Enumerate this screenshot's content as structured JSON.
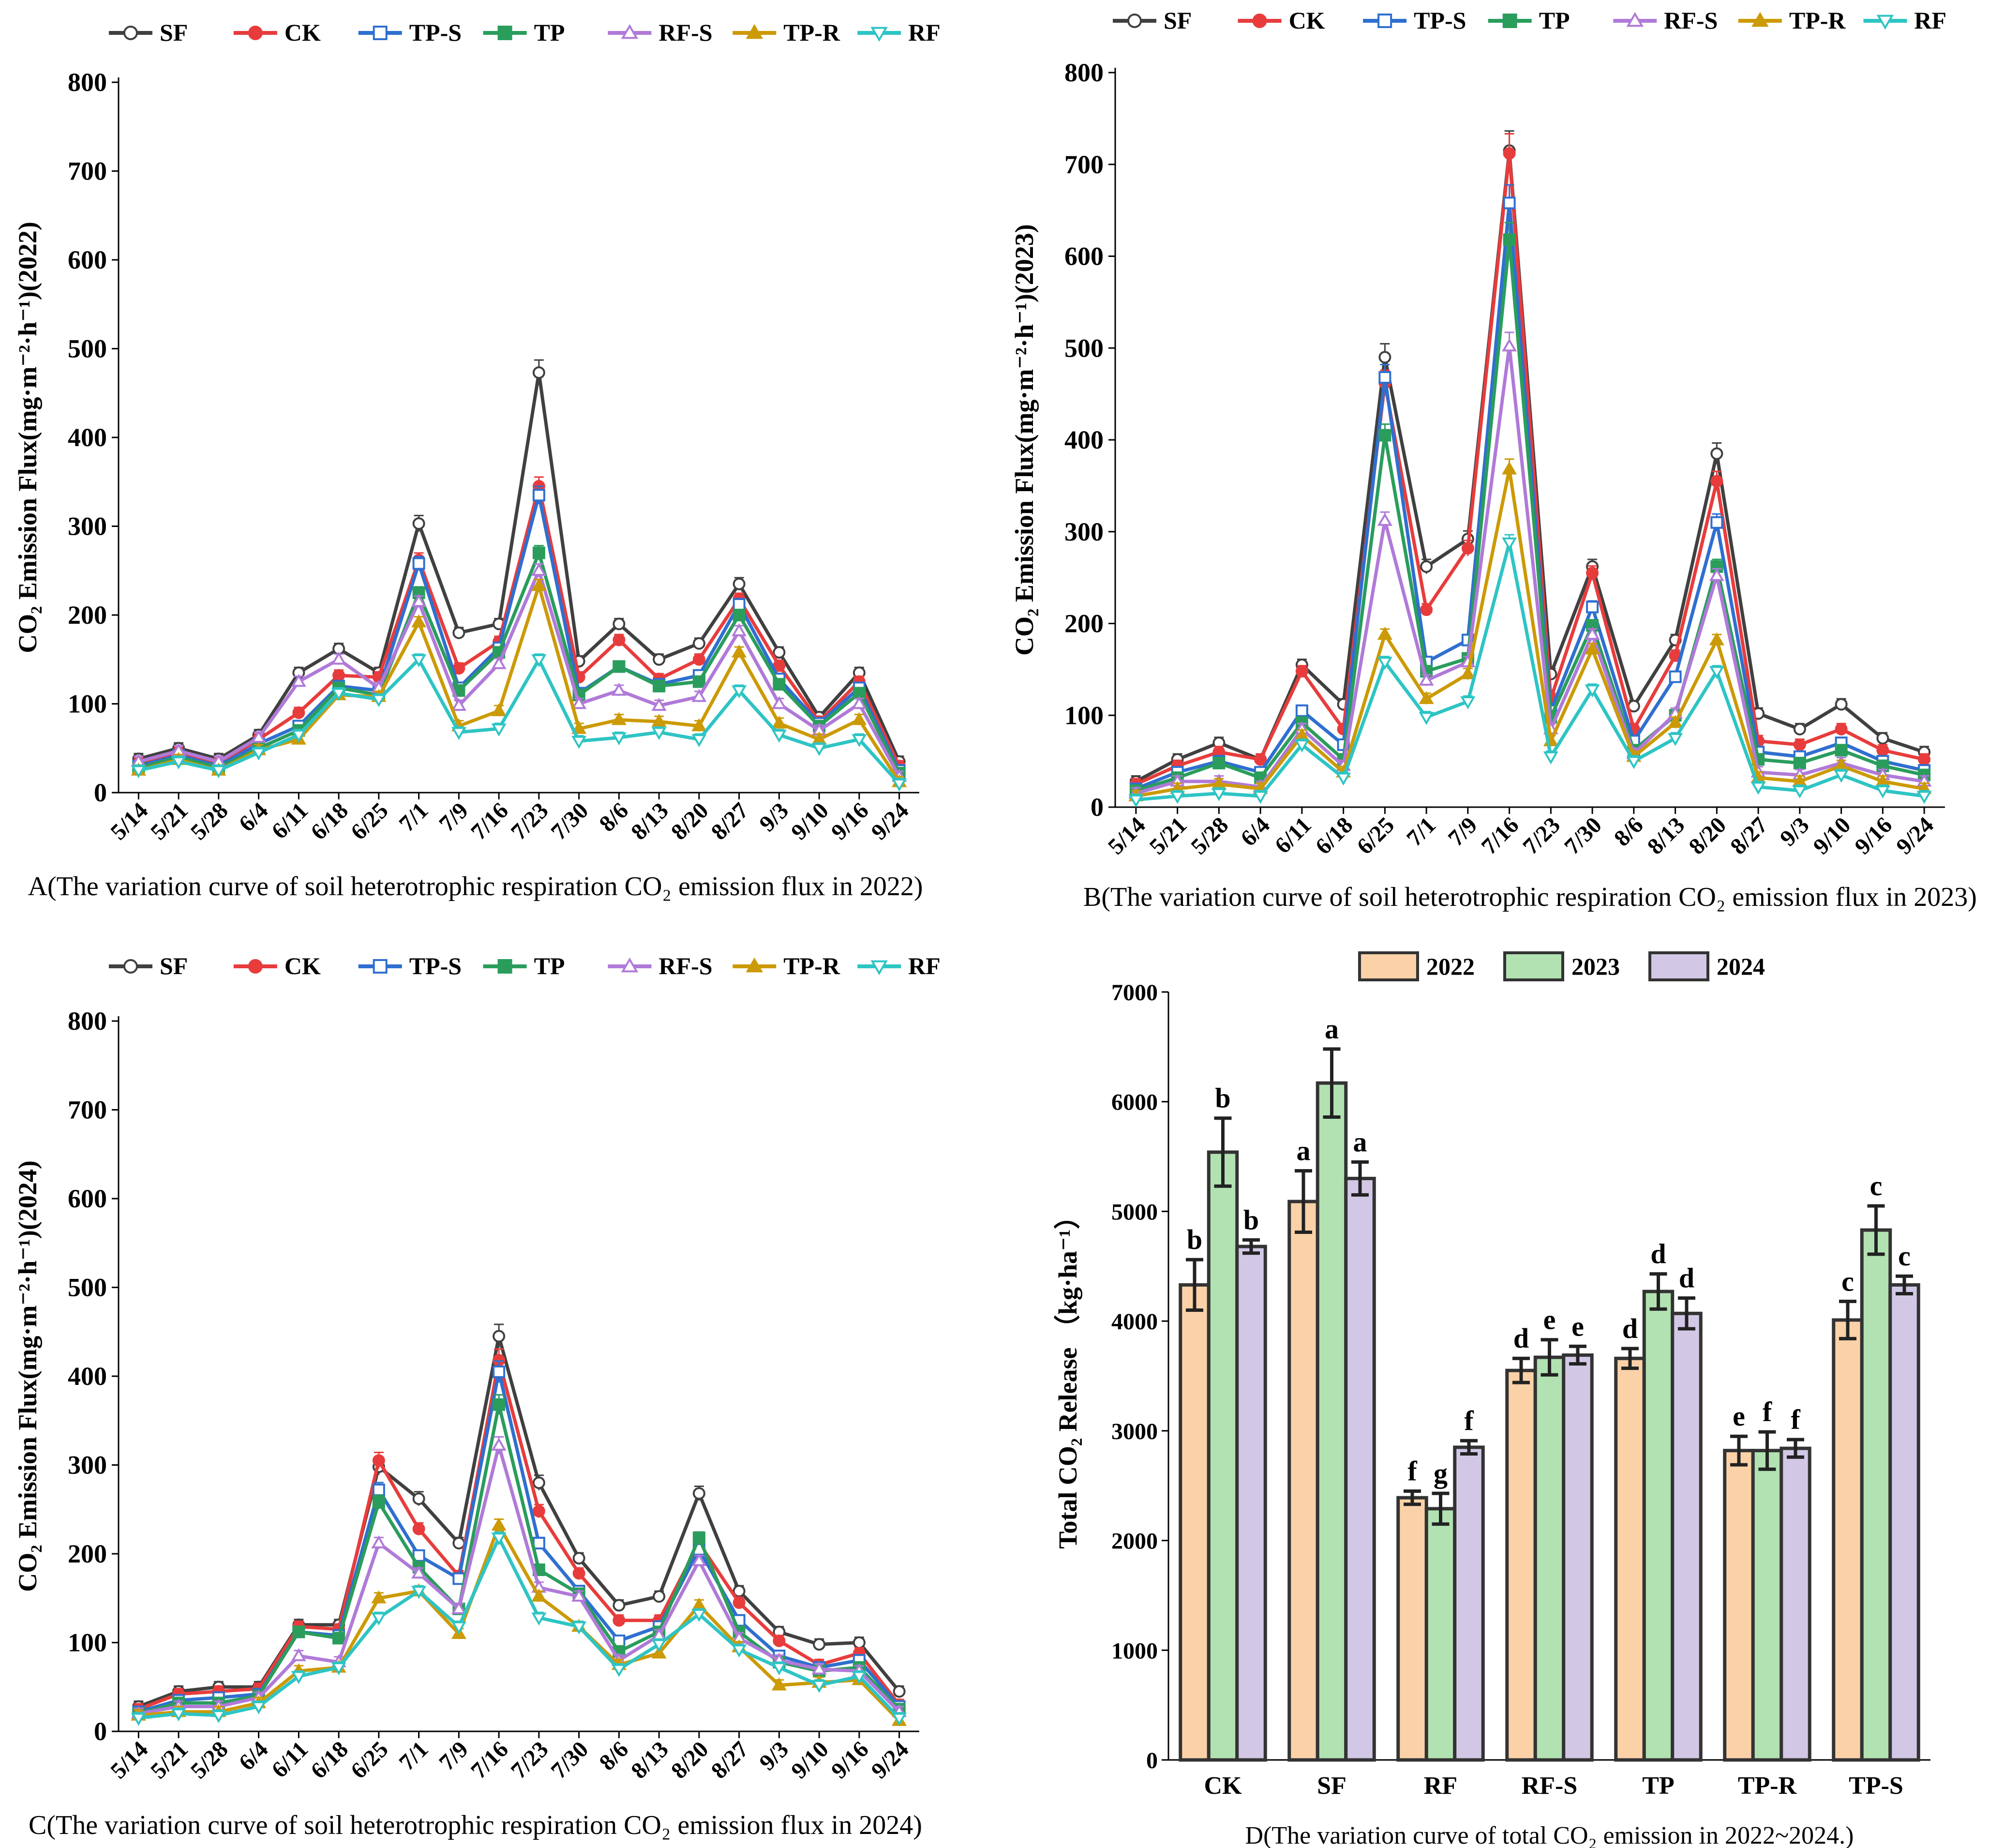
{
  "chart_data": [
    {
      "id": "A",
      "type": "line",
      "caption": "A(The variation curve of soil heterotrophic respiration CO₂ emission flux in 2022)",
      "ylabel": "CO₂ Emission Flux(mg·m⁻²·h⁻¹)(2022)",
      "ylim": [
        0,
        800
      ],
      "yticks": [
        0,
        100,
        200,
        300,
        400,
        500,
        600,
        700,
        800
      ],
      "categories": [
        "5/14",
        "5/21",
        "5/28",
        "6/4",
        "6/11",
        "6/18",
        "6/25",
        "7/1",
        "7/9",
        "7/16",
        "7/23",
        "7/30",
        "8/6",
        "8/13",
        "8/20",
        "8/27",
        "9/3",
        "9/10",
        "9/16",
        "9/24"
      ],
      "legend_position": "top",
      "series": [
        {
          "name": "SF",
          "color": "#404040",
          "marker": "circle-open",
          "values": [
            38,
            50,
            38,
            65,
            135,
            162,
            135,
            303,
            180,
            190,
            473,
            148,
            190,
            150,
            168,
            235,
            158,
            85,
            135,
            35
          ]
        },
        {
          "name": "CK",
          "color": "#e83c3c",
          "marker": "circle-filled",
          "values": [
            33,
            45,
            33,
            60,
            90,
            132,
            130,
            262,
            140,
            170,
            345,
            130,
            172,
            128,
            150,
            218,
            143,
            80,
            125,
            30
          ]
        },
        {
          "name": "TP-S",
          "color": "#2f6fd0",
          "marker": "square-open",
          "values": [
            30,
            42,
            30,
            55,
            75,
            120,
            115,
            258,
            118,
            163,
            335,
            112,
            142,
            122,
            132,
            212,
            128,
            78,
            118,
            25
          ]
        },
        {
          "name": "TP",
          "color": "#2a9d5c",
          "marker": "square-filled",
          "values": [
            28,
            40,
            28,
            50,
            70,
            118,
            110,
            225,
            115,
            158,
            270,
            110,
            142,
            120,
            125,
            200,
            122,
            75,
            112,
            22
          ]
        },
        {
          "name": "RF-S",
          "color": "#b07ad8",
          "marker": "triangle-open",
          "values": [
            35,
            47,
            35,
            62,
            125,
            150,
            118,
            215,
            98,
            145,
            250,
            100,
            115,
            98,
            108,
            182,
            100,
            70,
            100,
            18
          ]
        },
        {
          "name": "TP-R",
          "color": "#cc9a06",
          "marker": "triangle-filled",
          "values": [
            25,
            37,
            25,
            48,
            60,
            110,
            108,
            192,
            75,
            92,
            233,
            72,
            82,
            80,
            75,
            158,
            78,
            60,
            82,
            12
          ]
        },
        {
          "name": "RF",
          "color": "#2ec4c4",
          "marker": "triangle-down-open",
          "values": [
            25,
            35,
            25,
            45,
            65,
            112,
            105,
            150,
            68,
            72,
            150,
            58,
            62,
            68,
            60,
            115,
            65,
            50,
            60,
            10
          ]
        }
      ]
    },
    {
      "id": "B",
      "type": "line",
      "caption": "B(The variation curve of soil heterotrophic respiration CO₂ emission flux in 2023)",
      "ylabel": "CO₂ Emission Flux(mg·m⁻²·h⁻¹)(2023)",
      "ylim": [
        0,
        800
      ],
      "yticks": [
        0,
        100,
        200,
        300,
        400,
        500,
        600,
        700,
        800
      ],
      "categories": [
        "5/14",
        "5/21",
        "5/28",
        "6/4",
        "6/11",
        "6/18",
        "6/25",
        "7/1",
        "7/9",
        "7/16",
        "7/23",
        "7/30",
        "8/6",
        "8/13",
        "8/20",
        "8/27",
        "9/3",
        "9/10",
        "9/16",
        "9/24"
      ],
      "legend_position": "top",
      "series": [
        {
          "name": "SF",
          "color": "#404040",
          "marker": "circle-open",
          "values": [
            28,
            52,
            70,
            52,
            155,
            112,
            490,
            262,
            292,
            715,
            145,
            262,
            110,
            182,
            385,
            102,
            85,
            112,
            75,
            60
          ]
        },
        {
          "name": "CK",
          "color": "#e83c3c",
          "marker": "circle-filled",
          "values": [
            25,
            45,
            60,
            52,
            148,
            85,
            462,
            215,
            282,
            712,
            118,
            255,
            85,
            165,
            355,
            72,
            68,
            85,
            62,
            52
          ]
        },
        {
          "name": "TP-S",
          "color": "#2f6fd0",
          "marker": "square-open",
          "values": [
            20,
            38,
            50,
            38,
            105,
            68,
            468,
            158,
            182,
            658,
            105,
            218,
            72,
            142,
            310,
            60,
            55,
            70,
            50,
            40
          ]
        },
        {
          "name": "TP",
          "color": "#2a9d5c",
          "marker": "square-filled",
          "values": [
            18,
            32,
            48,
            32,
            92,
            52,
            405,
            148,
            162,
            618,
            98,
            198,
            62,
            100,
            262,
            52,
            48,
            62,
            45,
            35
          ]
        },
        {
          "name": "RF-S",
          "color": "#b07ad8",
          "marker": "triangle-open",
          "values": [
            15,
            28,
            28,
            22,
            85,
            45,
            312,
            138,
            158,
            502,
            85,
            188,
            58,
            102,
            252,
            38,
            35,
            48,
            35,
            28
          ]
        },
        {
          "name": "TP-R",
          "color": "#cc9a06",
          "marker": "triangle-filled",
          "values": [
            12,
            20,
            25,
            20,
            78,
            38,
            188,
            118,
            145,
            368,
            72,
            172,
            55,
            92,
            182,
            32,
            28,
            45,
            28,
            20
          ]
        },
        {
          "name": "RF",
          "color": "#2ec4c4",
          "marker": "triangle-down-open",
          "values": [
            8,
            12,
            15,
            12,
            68,
            32,
            158,
            98,
            115,
            288,
            55,
            128,
            50,
            75,
            148,
            22,
            18,
            35,
            18,
            12
          ]
        }
      ]
    },
    {
      "id": "C",
      "type": "line",
      "caption": "C(The variation curve of soil heterotrophic respiration CO₂ emission flux in 2024)",
      "ylabel": "CO₂ Emission Flux(mg·m⁻²·h⁻¹)(2024)",
      "ylim": [
        0,
        800
      ],
      "yticks": [
        0,
        100,
        200,
        300,
        400,
        500,
        600,
        700,
        800
      ],
      "categories": [
        "5/14",
        "5/21",
        "5/28",
        "6/4",
        "6/11",
        "6/18",
        "6/25",
        "7/1",
        "7/9",
        "7/16",
        "7/23",
        "7/30",
        "8/6",
        "8/13",
        "8/20",
        "8/27",
        "9/3",
        "9/10",
        "9/16",
        "9/24"
      ],
      "legend_position": "top",
      "series": [
        {
          "name": "SF",
          "color": "#404040",
          "marker": "circle-open",
          "values": [
            28,
            45,
            50,
            50,
            120,
            120,
            298,
            262,
            212,
            445,
            280,
            195,
            142,
            152,
            268,
            158,
            112,
            98,
            100,
            45
          ]
        },
        {
          "name": "CK",
          "color": "#e83c3c",
          "marker": "circle-filled",
          "values": [
            25,
            42,
            45,
            48,
            118,
            115,
            305,
            228,
            175,
            418,
            248,
            178,
            125,
            125,
            212,
            145,
            102,
            75,
            88,
            30
          ]
        },
        {
          "name": "TP-S",
          "color": "#2f6fd0",
          "marker": "square-open",
          "values": [
            22,
            35,
            38,
            42,
            112,
            108,
            272,
            198,
            172,
            405,
            212,
            158,
            102,
            118,
            205,
            125,
            85,
            72,
            80,
            28
          ]
        },
        {
          "name": "TP",
          "color": "#2a9d5c",
          "marker": "square-filled",
          "values": [
            20,
            32,
            32,
            40,
            112,
            105,
            258,
            185,
            138,
            368,
            182,
            155,
            90,
            112,
            218,
            112,
            78,
            68,
            72,
            25
          ]
        },
        {
          "name": "RF-S",
          "color": "#b07ad8",
          "marker": "triangle-open",
          "values": [
            20,
            28,
            28,
            38,
            85,
            78,
            212,
            178,
            138,
            322,
            162,
            152,
            80,
            108,
            192,
            105,
            80,
            70,
            68,
            22
          ]
        },
        {
          "name": "TP-R",
          "color": "#cc9a06",
          "marker": "triangle-filled",
          "values": [
            18,
            22,
            22,
            32,
            68,
            72,
            150,
            158,
            110,
            232,
            152,
            118,
            75,
            88,
            142,
            95,
            52,
            55,
            58,
            12
          ]
        },
        {
          "name": "RF",
          "color": "#2ec4c4",
          "marker": "triangle-down-open",
          "values": [
            15,
            20,
            18,
            28,
            62,
            72,
            128,
            158,
            118,
            218,
            128,
            118,
            70,
            98,
            132,
            92,
            72,
            52,
            62,
            15
          ]
        }
      ]
    },
    {
      "id": "D",
      "type": "bar",
      "caption": "D(The variation curve of  total CO₂ emission in 2022~2024.)",
      "ylabel": "Total CO₂ Release （kg·ha⁻¹）",
      "ylim": [
        0,
        7000
      ],
      "yticks": [
        0,
        1000,
        2000,
        3000,
        4000,
        5000,
        6000,
        7000
      ],
      "categories": [
        "CK",
        "SF",
        "RF",
        "RF-S",
        "TP",
        "TP-R",
        "TP-S"
      ],
      "legend_position": "top",
      "series": [
        {
          "name": "2022",
          "color": "#fbd2a8",
          "values": [
            4330,
            5090,
            2390,
            3550,
            3660,
            2820,
            4010
          ],
          "errors": [
            230,
            280,
            60,
            110,
            90,
            130,
            170
          ],
          "letters": [
            "b",
            "a",
            "f",
            "d",
            "d",
            "e",
            "c"
          ]
        },
        {
          "name": "2023",
          "color": "#b2e2b2",
          "values": [
            5540,
            6170,
            2290,
            3670,
            4270,
            2820,
            4830
          ],
          "errors": [
            310,
            310,
            140,
            160,
            160,
            170,
            220
          ],
          "letters": [
            "b",
            "a",
            "g",
            "e",
            "d",
            "f",
            "c"
          ]
        },
        {
          "name": "2024",
          "color": "#d2c8e6",
          "values": [
            4680,
            5300,
            2850,
            3690,
            4070,
            2840,
            4330
          ],
          "errors": [
            60,
            150,
            60,
            80,
            140,
            80,
            80
          ],
          "letters": [
            "b",
            "a",
            "f",
            "e",
            "d",
            "f",
            "c"
          ]
        }
      ]
    }
  ]
}
